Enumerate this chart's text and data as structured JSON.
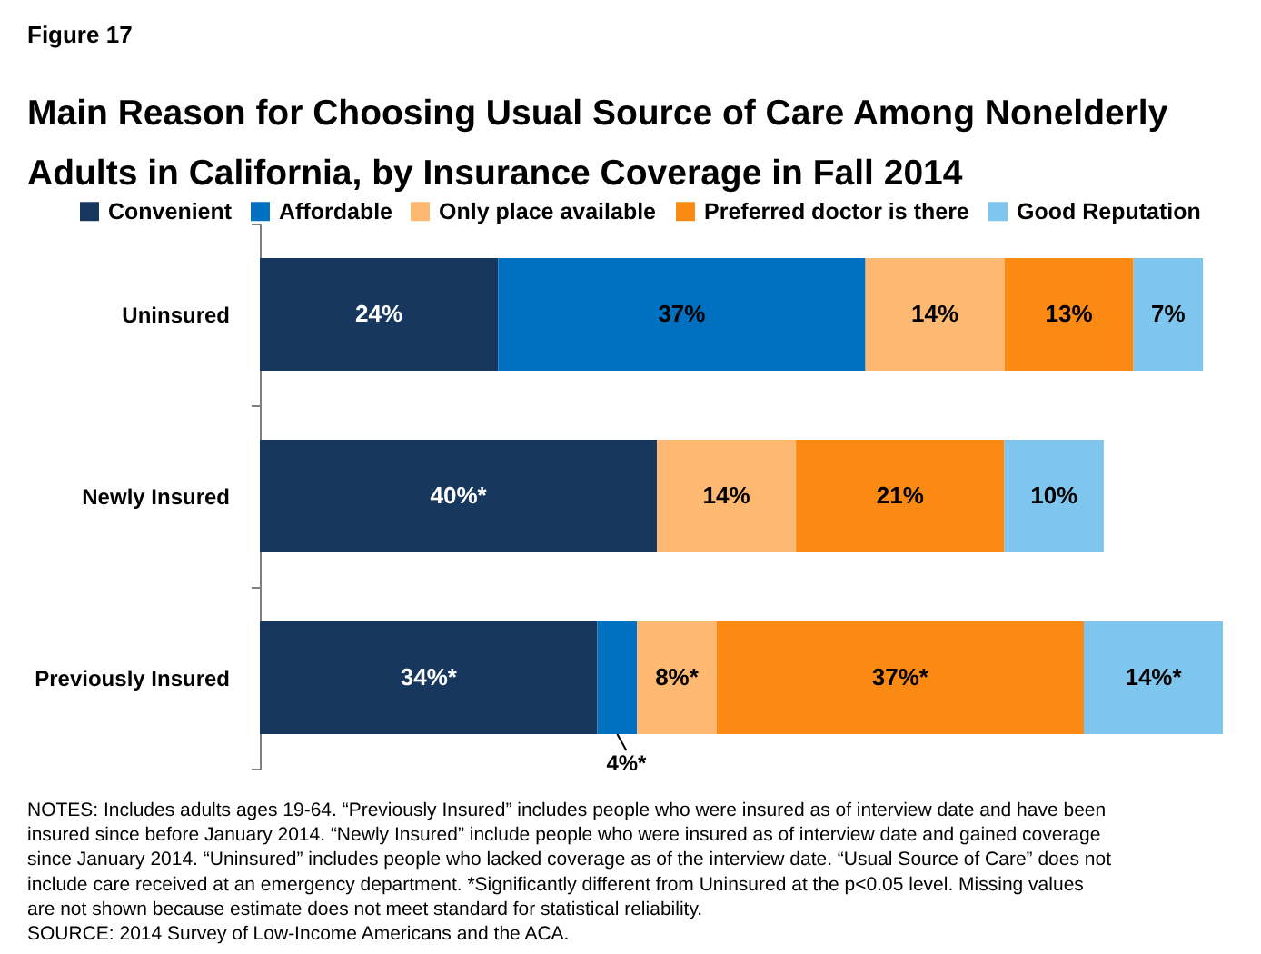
{
  "chart_data": {
    "type": "bar",
    "orientation": "horizontal",
    "stacked": true,
    "subtitle": "Figure 17",
    "title": "Main Reason for Choosing Usual Source of Care Among Nonelderly Adults in California, by Insurance Coverage in Fall 2014",
    "categories": [
      "Uninsured",
      "Newly Insured",
      "Previously Insured"
    ],
    "series": [
      {
        "name": "Convenient",
        "color": "#17375e",
        "values": [
          24,
          40,
          34
        ],
        "value_labels": [
          "24%",
          "40%*",
          "34%*"
        ]
      },
      {
        "name": "Affordable",
        "color": "#0070c0",
        "values": [
          37,
          null,
          4
        ],
        "value_labels": [
          "37%",
          null,
          "4%*"
        ]
      },
      {
        "name": "Only place available",
        "color": "#fdb872",
        "values": [
          14,
          14,
          8
        ],
        "value_labels": [
          "14%",
          "14%",
          "8%*"
        ]
      },
      {
        "name": "Preferred doctor is there",
        "color": "#fb8a14",
        "values": [
          13,
          21,
          37
        ],
        "value_labels": [
          "13%",
          "21%",
          "37%*"
        ]
      },
      {
        "name": "Good Reputation",
        "color": "#7fc6ee",
        "values": [
          7,
          10,
          14
        ],
        "value_labels": [
          "7%",
          "10%",
          "14%*"
        ]
      }
    ],
    "legend": "top",
    "annotations": [
      "NOTES: Includes adults ages 19-64. “Previously Insured” includes people who were insured as of interview date and have been insured since before January 2014. “Newly Insured” include people who were insured as of interview date and gained coverage since January 2014. “Uninsured” includes people who lacked coverage as of the interview date. “Usual Source of Care” does not include care received at an emergency department. *Significantly different from Uninsured at the p<0.05 level. Missing values are not shown because estimate does not meet standard for statistical reliability.",
      "SOURCE: 2014 Survey of Low-Income Americans and the ACA."
    ]
  }
}
